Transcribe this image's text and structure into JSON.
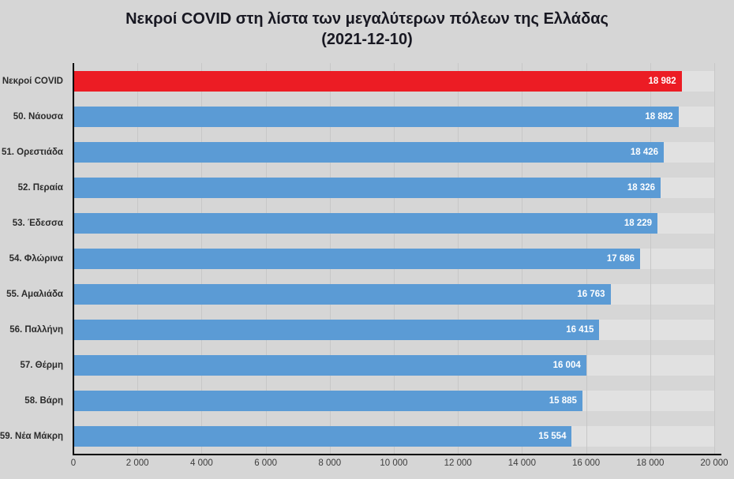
{
  "chart_data": {
    "type": "bar",
    "orientation": "horizontal",
    "title": "Νεκροί COVID στη λίστα των μεγαλύτερων πόλεων της Ελλάδας",
    "subtitle": "(2021-12-10)",
    "categories": [
      "Νεκροί COVID",
      "50. Νάουσα",
      "51. Ορεστιάδα",
      "52. Περαία",
      "53. Έδεσσα",
      "54. Φλώρινα",
      "55. Αμαλιάδα",
      "56. Παλλήνη",
      "57. Θέρμη",
      "58. Βάρη",
      "59. Νέα Μάκρη"
    ],
    "values": [
      18982,
      18882,
      18426,
      18326,
      18229,
      17686,
      16763,
      16415,
      16004,
      15885,
      15554
    ],
    "value_labels": [
      "18 982",
      "18 882",
      "18 426",
      "18 326",
      "18 229",
      "17 686",
      "16 763",
      "16 415",
      "16 004",
      "15 885",
      "15 554"
    ],
    "highlight_index": 0,
    "xlim": [
      0,
      20000
    ],
    "x_tick_labels": [
      "0",
      "2 000",
      "4 000",
      "6 000",
      "8 000",
      "10 000",
      "12 000",
      "14 000",
      "16 000",
      "18 000",
      "20 000"
    ],
    "grid": true,
    "legend": false,
    "colors": {
      "bar_default": "#5b9bd5",
      "bar_highlight": "#ec1c24",
      "background": "#d6d6d6",
      "band": "#e1e1e1",
      "gridline": "#c7c7c7",
      "value_label": "#ffffff",
      "axis": "#000000"
    }
  }
}
